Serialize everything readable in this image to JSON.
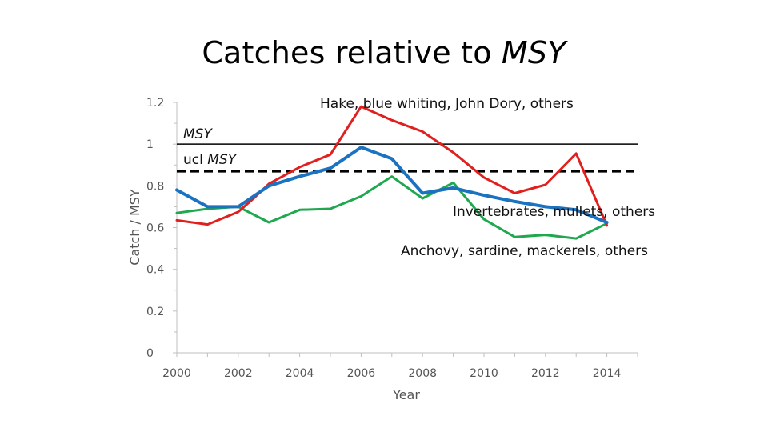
{
  "title": {
    "main": "Catches relative to ",
    "emphasis": "MSY"
  },
  "chart_data": {
    "type": "line",
    "xlabel": "Year",
    "ylabel": "Catch / MSY",
    "xlim": [
      2000,
      2015
    ],
    "ylim": [
      0,
      1.2
    ],
    "x_ticks": [
      "2000",
      "2002",
      "2004",
      "2006",
      "2008",
      "2010",
      "2012",
      "2014"
    ],
    "y_ticks": [
      "0",
      "0.2",
      "0.4",
      "0.6",
      "0.8",
      "1",
      "1.2"
    ],
    "grid": false,
    "reference_lines": [
      {
        "label_prefix": "",
        "label_emphasis": "MSY",
        "value": 1.0,
        "style": "solid",
        "color": "#000000"
      },
      {
        "label_prefix": "ucl ",
        "label_emphasis": "MSY",
        "value": 0.87,
        "style": "dashed",
        "color": "#000000"
      }
    ],
    "series": [
      {
        "name": "Hake, blue whiting, John Dory, others",
        "color": "#e0201e",
        "x": [
          2000,
          2001,
          2002,
          2002.5,
          2003,
          2004,
          2005,
          2006,
          2007,
          2008,
          2009,
          2010,
          2011,
          2012,
          2013,
          2014
        ],
        "y": [
          0.635,
          0.615,
          0.675,
          0.74,
          0.81,
          0.89,
          0.95,
          1.18,
          1.115,
          1.06,
          0.96,
          0.84,
          0.765,
          0.805,
          0.955,
          0.61
        ]
      },
      {
        "name": "Invertebrates, mullets, others",
        "color": "#1a72c0",
        "x": [
          2000,
          2001,
          2002,
          2003,
          2004,
          2005,
          2006,
          2007,
          2008,
          2009,
          2010,
          2011,
          2012,
          2013,
          2014
        ],
        "y": [
          0.78,
          0.7,
          0.7,
          0.8,
          0.845,
          0.885,
          0.985,
          0.93,
          0.765,
          0.79,
          0.755,
          0.725,
          0.7,
          0.685,
          0.625
        ]
      },
      {
        "name": "Anchovy, sardine, mackerels, others",
        "color": "#1fa84f",
        "x": [
          2000,
          2001,
          2002,
          2003,
          2004,
          2005,
          2006,
          2007,
          2008,
          2009,
          2010,
          2011,
          2012,
          2013,
          2014
        ],
        "y": [
          0.67,
          0.69,
          0.7,
          0.625,
          0.685,
          0.69,
          0.75,
          0.845,
          0.74,
          0.815,
          0.64,
          0.555,
          0.565,
          0.548,
          0.62
        ]
      }
    ],
    "annotations": [
      {
        "text": "Hake, blue whiting, John Dory, others",
        "series": 0
      },
      {
        "text": "Invertebrates, mullets, others",
        "series": 1
      },
      {
        "text": "Anchovy, sardine, mackerels, others",
        "series": 2
      }
    ]
  }
}
